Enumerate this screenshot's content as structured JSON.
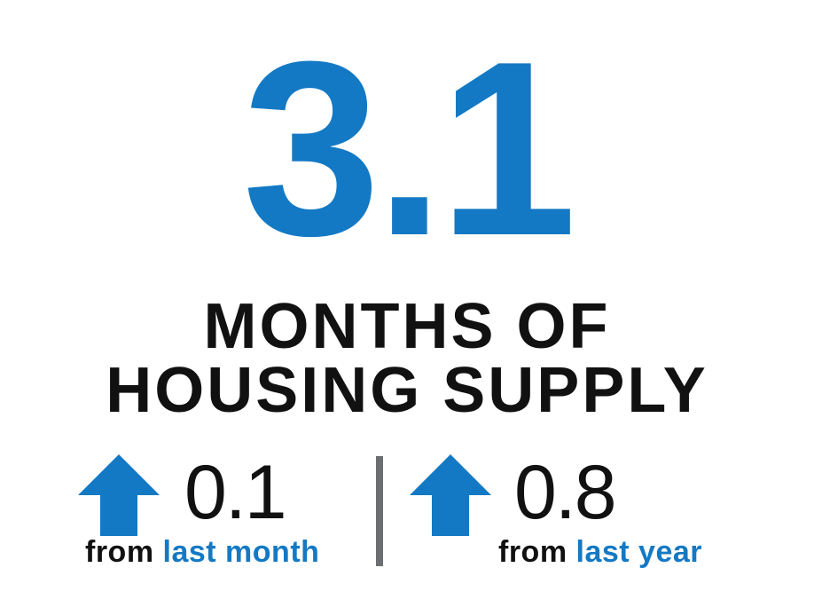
{
  "headline_value": "3.1",
  "caption": {
    "line1": "MONTHS OF",
    "line2": "HOUSING SUPPLY"
  },
  "stats": {
    "month": {
      "direction_icon": "up-arrow-icon",
      "value": "0.1",
      "from": "from",
      "period": "last month"
    },
    "year": {
      "direction_icon": "up-arrow-icon",
      "value": "0.8",
      "from": "from",
      "period": "last year"
    }
  },
  "colors": {
    "accent": "#1479c4",
    "text": "#111111",
    "divider": "#6d6e71",
    "background": "#ffffff"
  }
}
